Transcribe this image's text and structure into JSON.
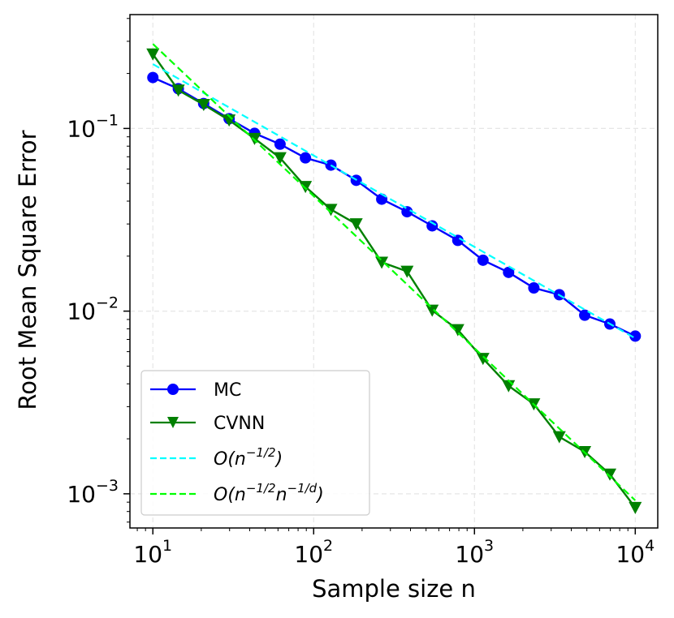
{
  "chart_data": {
    "type": "line",
    "xlabel": "Sample size n",
    "ylabel": "Root Mean Square Error",
    "xscale": "log",
    "yscale": "log",
    "xlim": [
      7.2,
      13800
    ],
    "ylim": [
      0.00065,
      0.42
    ],
    "grid": true,
    "legend_position": "lower-left",
    "x_ticks": [
      {
        "base": "10",
        "exp": "1"
      },
      {
        "base": "10",
        "exp": "2"
      },
      {
        "base": "10",
        "exp": "3"
      },
      {
        "base": "10",
        "exp": "4"
      }
    ],
    "y_ticks": [
      {
        "base": "10",
        "exp": "−1"
      },
      {
        "base": "10",
        "exp": "−2"
      },
      {
        "base": "10",
        "exp": "−3"
      }
    ],
    "x": [
      10,
      14.4,
      20.7,
      29.8,
      42.9,
      61.8,
      88.9,
      128,
      184,
      265,
      381,
      546,
      788,
      1130,
      1630,
      2340,
      3370,
      4850,
      6950,
      10000
    ],
    "series": [
      {
        "name": "MC",
        "color": "#0000ff",
        "marker": "circle",
        "style": "solid",
        "values": [
          0.19,
          0.165,
          0.137,
          0.113,
          0.094,
          0.082,
          0.069,
          0.063,
          0.052,
          0.041,
          0.035,
          0.0293,
          0.0244,
          0.019,
          0.0163,
          0.0134,
          0.0123,
          0.0095,
          0.0085,
          0.0073
        ]
      },
      {
        "name": "CVNN",
        "color": "#008000",
        "marker": "triangle-down",
        "style": "solid",
        "values": [
          0.255,
          0.162,
          0.135,
          0.111,
          0.088,
          0.069,
          0.048,
          0.036,
          0.03,
          0.0185,
          0.0165,
          0.0101,
          0.0079,
          0.0055,
          0.0039,
          0.0031,
          0.00205,
          0.0017,
          0.00128,
          0.00084
        ]
      },
      {
        "name_parts": {
          "base": "O(n",
          "sup": "−1/2",
          "end": ")"
        },
        "color": "#00ffff",
        "style": "dashed",
        "x": [
          10,
          10000
        ],
        "values": [
          0.225,
          0.0071
        ]
      },
      {
        "name_parts": {
          "base": "O(n",
          "sup": "−1/2",
          "mid": "n",
          "sup2": "−1/d",
          "end": ")"
        },
        "color": "#00ff00",
        "style": "dashed",
        "x": [
          10,
          10000
        ],
        "values": [
          0.29,
          0.00092
        ]
      }
    ]
  }
}
